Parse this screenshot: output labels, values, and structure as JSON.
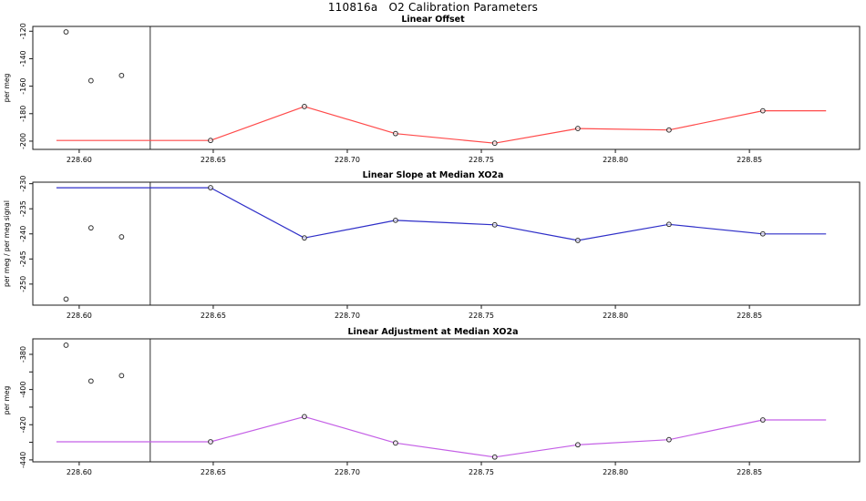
{
  "page_title": "110816a   O2 Calibration Parameters",
  "x_axis": {
    "xlim": [
      228.5827,
      228.8911
    ],
    "ticks": [
      {
        "v": 228.6,
        "label": "228.60"
      },
      {
        "v": 228.65,
        "label": "228.65"
      },
      {
        "v": 228.7,
        "label": "228.70"
      },
      {
        "v": 228.75,
        "label": "228.75"
      },
      {
        "v": 228.8,
        "label": "228.80"
      },
      {
        "v": 228.85,
        "label": "228.85"
      }
    ],
    "x": [
      228.649,
      228.684,
      228.718,
      228.755,
      228.786,
      228.82,
      228.855
    ],
    "line_extend": [
      228.5915,
      228.8786
    ],
    "vline": 228.6265,
    "outlier_x": [
      228.5951,
      228.6044,
      228.6158
    ]
  },
  "chart_data": [
    {
      "type": "line",
      "title": "Linear Offset",
      "ylabel": "per meg",
      "color": "#ff4a4a",
      "ylim": [
        -206.0,
        -116.5
      ],
      "yticks": [
        {
          "v": -120,
          "label": "-120"
        },
        {
          "v": -140,
          "label": "-140"
        },
        {
          "v": -160,
          "label": "-160"
        },
        {
          "v": -180,
          "label": "-180"
        },
        {
          "v": -200,
          "label": "-200"
        }
      ],
      "y": [
        -199.5,
        -174.8,
        -194.5,
        -201.5,
        -190.8,
        -191.9,
        -177.9
      ],
      "outlier_y": [
        -120.5,
        -156.0,
        -152.2
      ]
    },
    {
      "type": "line",
      "title": "Linear Slope at Median XO2a",
      "ylabel": "per meg / per meg signal",
      "color": "#2e2ec8",
      "ylim": [
        -254.2,
        -229.7
      ],
      "yticks": [
        {
          "v": -230,
          "label": "-230"
        },
        {
          "v": -235,
          "label": "-235"
        },
        {
          "v": -240,
          "label": "-240"
        },
        {
          "v": -245,
          "label": "-245"
        },
        {
          "v": -250,
          "label": "-250"
        }
      ],
      "y": [
        -230.8,
        -240.8,
        -237.3,
        -238.2,
        -241.3,
        -238.1,
        -240.0
      ],
      "outlier_y": [
        -253.0,
        -238.8,
        -240.6
      ]
    },
    {
      "type": "line",
      "title": "Linear Adjustment at Median XO2a",
      "ylabel": "per meg",
      "color": "#c45fe6",
      "ylim": [
        -441.1,
        -371.2
      ],
      "yticks": [
        {
          "v": -380,
          "label": "-380"
        },
        {
          "v": -390,
          "label": ""
        },
        {
          "v": -400,
          "label": "-400"
        },
        {
          "v": -410,
          "label": ""
        },
        {
          "v": -420,
          "label": "-420"
        },
        {
          "v": -430,
          "label": ""
        },
        {
          "v": -440,
          "label": "-440"
        }
      ],
      "y": [
        -429.7,
        -415.4,
        -430.4,
        -438.4,
        -431.4,
        -428.5,
        -417.3
      ],
      "outlier_y": [
        -374.8,
        -395.2,
        -392.1
      ]
    }
  ]
}
